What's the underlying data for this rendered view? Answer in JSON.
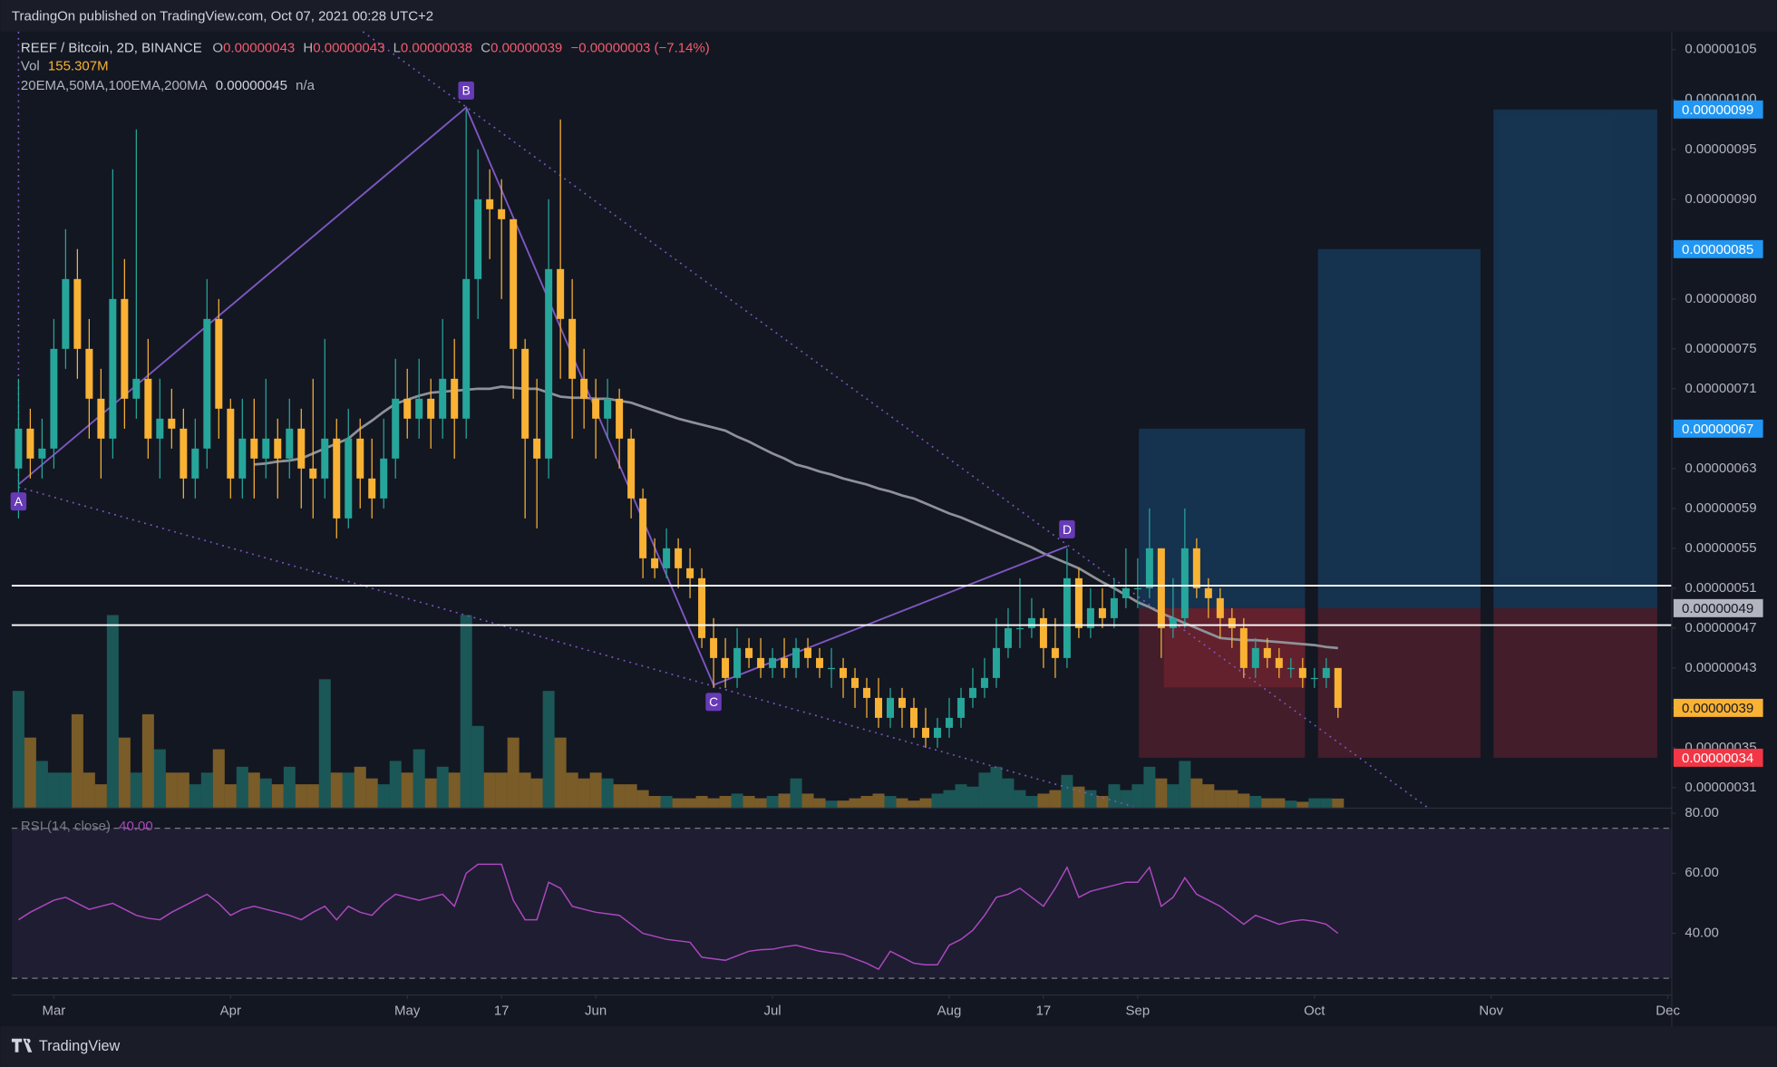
{
  "header": {
    "text": "TradingOn published on TradingView.com, Oct 07, 2021 00:28 UTC+2"
  },
  "footer": {
    "brand": "TradingView"
  },
  "legend": {
    "symbol": "REEF / Bitcoin, 2D, BINANCE",
    "ohlc": [
      {
        "key": "O",
        "value": "0.00000043"
      },
      {
        "key": "H",
        "value": "0.00000043"
      },
      {
        "key": "L",
        "value": "0.00000038"
      },
      {
        "key": "C",
        "value": "0.00000039"
      }
    ],
    "change": "−0.00000003 (−7.14%)",
    "volume_label": "Vol",
    "volume_value": "155.307M",
    "ma_label": "20EMA,50MA,100EMA,200MA",
    "ma_value": "0.00000045",
    "ma_na": "n/a",
    "rsi_label": "RSI (14, close)",
    "rsi_value": "40.00"
  },
  "chart_data": {
    "type": "candlestick",
    "up_color": "#26a69a",
    "down_color": "#f9b234",
    "grid": false,
    "categories": [
      null,
      null,
      null,
      "Mar",
      null,
      null,
      null,
      null,
      null,
      null,
      null,
      null,
      null,
      null,
      null,
      null,
      null,
      null,
      "Apr",
      null,
      null,
      null,
      null,
      null,
      null,
      null,
      null,
      null,
      null,
      null,
      null,
      null,
      null,
      "May",
      null,
      null,
      null,
      null,
      null,
      null,
      null,
      "17",
      null,
      null,
      null,
      null,
      null,
      null,
      null,
      "Jun",
      null,
      null,
      null,
      null,
      null,
      null,
      null,
      null,
      null,
      null,
      null,
      null,
      null,
      null,
      "Jul",
      null,
      null,
      null,
      null,
      null,
      null,
      null,
      null,
      null,
      null,
      null,
      null,
      null,
      null,
      "Aug",
      null,
      null,
      null,
      null,
      null,
      null,
      null,
      "17",
      null,
      null,
      null,
      null,
      null,
      null,
      null,
      "Sep",
      null,
      null,
      null,
      null,
      null,
      null,
      null,
      null,
      null,
      null,
      null,
      null,
      null,
      null,
      "Oct",
      null,
      null,
      null,
      null,
      null,
      null,
      null,
      null,
      null,
      null,
      null,
      null,
      null,
      null,
      "Nov",
      null,
      null,
      null,
      null,
      null,
      null,
      null,
      null,
      null,
      null,
      null,
      null,
      null,
      null,
      "Dec"
    ],
    "open": [
      6.3e-07,
      6.7e-07,
      6.4e-07,
      6.5e-07,
      7.5e-07,
      8.2e-07,
      7.5e-07,
      7e-07,
      6.6e-07,
      8e-07,
      7e-07,
      7.2e-07,
      6.6e-07,
      6.8e-07,
      6.7e-07,
      6.2e-07,
      6.5e-07,
      7.8e-07,
      6.9e-07,
      6.2e-07,
      6.6e-07,
      6.4e-07,
      6.6e-07,
      6.4e-07,
      6.7e-07,
      6.3e-07,
      6.2e-07,
      6.6e-07,
      5.8e-07,
      6.6e-07,
      6.2e-07,
      6e-07,
      6.4e-07,
      7e-07,
      6.8e-07,
      7e-07,
      6.8e-07,
      7.2e-07,
      6.8e-07,
      8.2e-07,
      9e-07,
      8.9e-07,
      8.8e-07,
      7.5e-07,
      6.6e-07,
      6.4e-07,
      8.3e-07,
      7.8e-07,
      7.2e-07,
      7e-07,
      6.8e-07,
      7e-07,
      6.6e-07,
      6e-07,
      5.4e-07,
      5.3e-07,
      5.5e-07,
      5.3e-07,
      5.2e-07,
      4.6e-07,
      4.4e-07,
      4.2e-07,
      4.5e-07,
      4.4e-07,
      4.3e-07,
      4.4e-07,
      4.3e-07,
      4.5e-07,
      4.4e-07,
      4.3e-07,
      4.3e-07,
      4.2e-07,
      4.1e-07,
      4e-07,
      3.8e-07,
      4e-07,
      3.9e-07,
      3.7e-07,
      3.6e-07,
      3.7e-07,
      3.8e-07,
      4e-07,
      4.1e-07,
      4.2e-07,
      4.5e-07,
      4.7e-07,
      4.7e-07,
      4.8e-07,
      4.5e-07,
      4.4e-07,
      5.2e-07,
      4.7e-07,
      4.9e-07,
      4.8e-07,
      5e-07,
      5.1e-07,
      5.1e-07,
      5.5e-07,
      4.7e-07,
      4.8e-07,
      5.5e-07,
      5.1e-07,
      5e-07,
      4.8e-07,
      4.7e-07,
      4.3e-07,
      4.5e-07,
      4.4e-07,
      4.3e-07,
      4.3e-07,
      4.2e-07,
      4.2e-07,
      4.3e-07,
      null,
      null,
      null,
      null,
      null,
      null,
      null,
      null,
      null,
      null,
      null,
      null,
      null,
      null,
      null,
      null,
      null,
      null,
      null,
      null,
      null,
      null,
      null,
      null,
      null,
      null,
      null,
      null
    ],
    "high": [
      7.2e-07,
      6.9e-07,
      6.8e-07,
      7.8e-07,
      8.7e-07,
      8.5e-07,
      7.8e-07,
      7.3e-07,
      9.3e-07,
      8.4e-07,
      9.7e-07,
      7.6e-07,
      7.2e-07,
      7.1e-07,
      6.9e-07,
      6.8e-07,
      8.2e-07,
      8e-07,
      7e-07,
      7e-07,
      7e-07,
      7.2e-07,
      6.8e-07,
      7e-07,
      6.9e-07,
      7.2e-07,
      7.6e-07,
      6.8e-07,
      6.9e-07,
      6.8e-07,
      6.6e-07,
      6.8e-07,
      7.4e-07,
      7.3e-07,
      7.4e-07,
      7.2e-07,
      7.8e-07,
      7.6e-07,
      9.9e-07,
      9.5e-07,
      9.3e-07,
      9.2e-07,
      8.8e-07,
      7.6e-07,
      7.2e-07,
      9e-07,
      9.8e-07,
      8.2e-07,
      7.5e-07,
      7.2e-07,
      7.2e-07,
      7.1e-07,
      6.7e-07,
      6.1e-07,
      5.6e-07,
      5.7e-07,
      5.6e-07,
      5.5e-07,
      5.3e-07,
      4.8e-07,
      4.6e-07,
      4.7e-07,
      4.6e-07,
      4.6e-07,
      4.5e-07,
      4.6e-07,
      4.6e-07,
      4.6e-07,
      4.5e-07,
      4.5e-07,
      4.4e-07,
      4.3e-07,
      4.2e-07,
      4.2e-07,
      4.1e-07,
      4.1e-07,
      4e-07,
      3.9e-07,
      3.8e-07,
      4e-07,
      4.1e-07,
      4.3e-07,
      4.4e-07,
      4.8e-07,
      4.9e-07,
      5.2e-07,
      5e-07,
      4.9e-07,
      4.8e-07,
      5.5e-07,
      5.3e-07,
      5.1e-07,
      5.1e-07,
      5.2e-07,
      5.5e-07,
      5.4e-07,
      5.9e-07,
      5.5e-07,
      5.2e-07,
      5.9e-07,
      5.6e-07,
      5.2e-07,
      5.1e-07,
      4.9e-07,
      4.8e-07,
      4.6e-07,
      4.6e-07,
      4.5e-07,
      4.4e-07,
      4.4e-07,
      4.3e-07,
      4.4e-07,
      4.3e-07,
      null,
      null,
      null,
      null,
      null,
      null,
      null,
      null,
      null,
      null,
      null,
      null,
      null,
      null,
      null,
      null,
      null,
      null,
      null,
      null,
      null,
      null,
      null,
      null,
      null,
      null,
      null,
      null
    ],
    "low": [
      5.8e-07,
      6.2e-07,
      6.2e-07,
      6.3e-07,
      7.3e-07,
      7.2e-07,
      6.6e-07,
      6.2e-07,
      6.4e-07,
      6.7e-07,
      6.8e-07,
      6.4e-07,
      6.2e-07,
      6.5e-07,
      6e-07,
      6e-07,
      6.3e-07,
      6.6e-07,
      6e-07,
      6e-07,
      6e-07,
      6.2e-07,
      6e-07,
      6.2e-07,
      5.9e-07,
      5.8e-07,
      6e-07,
      5.6e-07,
      5.7e-07,
      5.9e-07,
      5.8e-07,
      5.9e-07,
      6.2e-07,
      6.6e-07,
      6.6e-07,
      6.5e-07,
      6.6e-07,
      6.4e-07,
      6.6e-07,
      7.8e-07,
      8.4e-07,
      8e-07,
      7e-07,
      5.8e-07,
      5.7e-07,
      6.2e-07,
      7.2e-07,
      6.6e-07,
      6.7e-07,
      6.4e-07,
      6.6e-07,
      6.3e-07,
      5.8e-07,
      5.2e-07,
      5.2e-07,
      5.2e-07,
      5.1e-07,
      5e-07,
      4.5e-07,
      4.1e-07,
      4.1e-07,
      4.1e-07,
      4.3e-07,
      4.2e-07,
      4.2e-07,
      4.2e-07,
      4.2e-07,
      4.3e-07,
      4.2e-07,
      4.1e-07,
      4e-07,
      3.9e-07,
      3.8e-07,
      3.7e-07,
      3.7e-07,
      3.7e-07,
      3.6e-07,
      3.5e-07,
      3.5e-07,
      3.6e-07,
      3.7e-07,
      3.9e-07,
      4e-07,
      4.1e-07,
      4.4e-07,
      4.5e-07,
      4.6e-07,
      4.3e-07,
      4.2e-07,
      4.3e-07,
      4.6e-07,
      4.6e-07,
      4.7e-07,
      4.7e-07,
      4.9e-07,
      4.9e-07,
      5e-07,
      4.4e-07,
      4.6e-07,
      4.7e-07,
      5e-07,
      4.8e-07,
      4.6e-07,
      4.5e-07,
      4.2e-07,
      4.2e-07,
      4.3e-07,
      4.2e-07,
      4.2e-07,
      4.1e-07,
      4.1e-07,
      4.1e-07,
      3.8e-07,
      null,
      null,
      null,
      null,
      null,
      null,
      null,
      null,
      null,
      null,
      null,
      null,
      null,
      null,
      null,
      null,
      null,
      null,
      null,
      null,
      null,
      null,
      null,
      null,
      null,
      null,
      null,
      null
    ],
    "close": [
      6.7e-07,
      6.4e-07,
      6.5e-07,
      7.5e-07,
      8.2e-07,
      7.5e-07,
      7e-07,
      6.6e-07,
      8e-07,
      7e-07,
      7.2e-07,
      6.6e-07,
      6.8e-07,
      6.7e-07,
      6.2e-07,
      6.5e-07,
      7.8e-07,
      6.9e-07,
      6.2e-07,
      6.6e-07,
      6.4e-07,
      6.6e-07,
      6.4e-07,
      6.7e-07,
      6.3e-07,
      6.2e-07,
      6.6e-07,
      5.8e-07,
      6.6e-07,
      6.2e-07,
      6e-07,
      6.4e-07,
      7e-07,
      6.8e-07,
      7e-07,
      6.8e-07,
      7.2e-07,
      6.8e-07,
      8.2e-07,
      9e-07,
      8.9e-07,
      8.8e-07,
      7.5e-07,
      6.6e-07,
      6.4e-07,
      8.3e-07,
      7.8e-07,
      7.2e-07,
      7e-07,
      6.8e-07,
      7e-07,
      6.6e-07,
      6e-07,
      5.4e-07,
      5.3e-07,
      5.5e-07,
      5.3e-07,
      5.2e-07,
      4.6e-07,
      4.4e-07,
      4.2e-07,
      4.5e-07,
      4.4e-07,
      4.3e-07,
      4.4e-07,
      4.3e-07,
      4.5e-07,
      4.4e-07,
      4.3e-07,
      4.3e-07,
      4.2e-07,
      4.1e-07,
      4e-07,
      3.8e-07,
      4e-07,
      3.9e-07,
      3.7e-07,
      3.6e-07,
      3.7e-07,
      3.8e-07,
      4e-07,
      4.1e-07,
      4.2e-07,
      4.5e-07,
      4.7e-07,
      4.7e-07,
      4.8e-07,
      4.5e-07,
      4.4e-07,
      5.2e-07,
      4.7e-07,
      4.9e-07,
      4.8e-07,
      5e-07,
      5.1e-07,
      5.1e-07,
      5.5e-07,
      4.7e-07,
      4.8e-07,
      5.5e-07,
      5.1e-07,
      5e-07,
      4.8e-07,
      4.7e-07,
      4.3e-07,
      4.5e-07,
      4.4e-07,
      4.3e-07,
      4.3e-07,
      4.2e-07,
      4.2e-07,
      4.3e-07,
      3.9e-07,
      null,
      null,
      null,
      null,
      null,
      null,
      null,
      null,
      null,
      null,
      null,
      null,
      null,
      null,
      null,
      null,
      null,
      null,
      null,
      null,
      null,
      null,
      null,
      null,
      null,
      null,
      null,
      null
    ],
    "volume": [
      2000,
      1200,
      800,
      600,
      600,
      1600,
      600,
      400,
      3300,
      1200,
      600,
      1600,
      1000,
      600,
      600,
      400,
      600,
      1000,
      400,
      700,
      600,
      500,
      400,
      700,
      400,
      400,
      2200,
      600,
      600,
      700,
      500,
      400,
      800,
      600,
      1000,
      500,
      700,
      600,
      3300,
      1400,
      600,
      600,
      1200,
      600,
      500,
      2000,
      1200,
      600,
      500,
      600,
      500,
      400,
      400,
      300,
      200,
      200,
      160,
      160,
      200,
      160,
      200,
      240,
      200,
      160,
      200,
      240,
      500,
      240,
      160,
      120,
      120,
      160,
      200,
      240,
      200,
      160,
      120,
      160,
      240,
      300,
      400,
      360,
      600,
      700,
      500,
      300,
      200,
      240,
      300,
      560,
      360,
      300,
      200,
      400,
      300,
      400,
      700,
      500,
      400,
      800,
      500,
      400,
      300,
      300,
      240,
      200,
      160,
      160,
      120,
      100,
      160,
      160,
      155.307,
      null,
      null,
      null,
      null,
      null,
      null,
      null,
      null,
      null,
      null,
      null,
      null,
      null,
      null,
      null,
      null,
      null,
      null,
      null,
      null,
      null,
      null,
      null,
      null,
      null,
      null,
      null,
      null
    ],
    "ma": {
      "color": "#8f9199",
      "values": [
        null,
        null,
        null,
        null,
        null,
        null,
        null,
        null,
        null,
        null,
        null,
        null,
        null,
        null,
        null,
        null,
        null,
        null,
        null,
        null,
        6.34e-07,
        6.35e-07,
        6.37e-07,
        6.38e-07,
        6.4e-07,
        6.45e-07,
        6.5e-07,
        6.55e-07,
        6.6e-07,
        6.7e-07,
        6.78e-07,
        6.87e-07,
        6.95e-07,
        6.99e-07,
        7.03e-07,
        7.06e-07,
        7.07e-07,
        7.08e-07,
        7.09e-07,
        7.1e-07,
        7.1e-07,
        7.12e-07,
        7.11e-07,
        7.1e-07,
        7.1e-07,
        7.06e-07,
        7.02e-07,
        7.01e-07,
        7.01e-07,
        7e-07,
        7e-07,
        6.98e-07,
        6.96e-07,
        6.92e-07,
        6.88e-07,
        6.84e-07,
        6.8e-07,
        6.77e-07,
        6.74e-07,
        6.71e-07,
        6.68e-07,
        6.62e-07,
        6.57e-07,
        6.51e-07,
        6.45e-07,
        6.4e-07,
        6.34e-07,
        6.31e-07,
        6.27e-07,
        6.24e-07,
        6.2e-07,
        6.17e-07,
        6.14e-07,
        6.1e-07,
        6.07e-07,
        6.03e-07,
        6e-07,
        5.95e-07,
        5.9e-07,
        5.85e-07,
        5.81e-07,
        5.76e-07,
        5.71e-07,
        5.66e-07,
        5.61e-07,
        5.56e-07,
        5.51e-07,
        5.45e-07,
        5.4e-07,
        5.35e-07,
        5.3e-07,
        5.23e-07,
        5.16e-07,
        5.1e-07,
        5.03e-07,
        4.96e-07,
        4.91e-07,
        4.85e-07,
        4.8e-07,
        4.75e-07,
        4.7e-07,
        4.65e-07,
        4.6e-07,
        4.59e-07,
        4.58e-07,
        4.58e-07,
        4.57e-07,
        4.56e-07,
        4.55e-07,
        4.54e-07,
        4.53e-07,
        4.51e-07,
        4.5e-07,
        null,
        null,
        null,
        null,
        null,
        null,
        null,
        null,
        null,
        null,
        null,
        null,
        null,
        null,
        null,
        null,
        null,
        null,
        null,
        null,
        null,
        null,
        null,
        null,
        null,
        null,
        null,
        null
      ]
    },
    "ylim": [
      2.9e-07,
      1.068e-06
    ],
    "yticks": [
      {
        "value": 1.05e-06,
        "label": "0.00000105"
      },
      {
        "value": 1e-06,
        "label": "0.00000100"
      },
      {
        "value": 9.5e-07,
        "label": "0.00000095"
      },
      {
        "value": 9e-07,
        "label": "0.00000090"
      },
      {
        "value": 8.5e-07,
        "label": "0.00000085"
      },
      {
        "value": 8e-07,
        "label": "0.00000080"
      },
      {
        "value": 7.5e-07,
        "label": "0.00000075"
      },
      {
        "value": 7.1e-07,
        "label": "0.00000071"
      },
      {
        "value": 6.7e-07,
        "label": "0.00000067"
      },
      {
        "value": 6.3e-07,
        "label": "0.00000063"
      },
      {
        "value": 5.9e-07,
        "label": "0.00000059"
      },
      {
        "value": 5.5e-07,
        "label": "0.00000055"
      },
      {
        "value": 5.1e-07,
        "label": "0.00000051"
      },
      {
        "value": 4.7e-07,
        "label": "0.00000047"
      },
      {
        "value": 4.3e-07,
        "label": "0.00000043"
      },
      {
        "value": 3.9e-07,
        "label": "0.00000039"
      },
      {
        "value": 3.5e-07,
        "label": "0.00000035"
      },
      {
        "value": 3.1e-07,
        "label": "0.00000031"
      }
    ],
    "price_labels": [
      {
        "value": 9.9e-07,
        "label": "0.00000099",
        "color": "#2196f3",
        "text_color": "#ffffff"
      },
      {
        "value": 8.5e-07,
        "label": "0.00000085",
        "color": "#2196f3",
        "text_color": "#ffffff"
      },
      {
        "value": 6.7e-07,
        "label": "0.00000067",
        "color": "#2196f3",
        "text_color": "#ffffff"
      },
      {
        "value": 4.9e-07,
        "label": "0.00000049",
        "color": "#b2b5be",
        "text_color": "#131722"
      },
      {
        "value": 3.9e-07,
        "label": "0.00000039",
        "color": "#f9b234",
        "text_color": "#131722"
      },
      {
        "value": 3.4e-07,
        "label": "0.00000034",
        "color": "#f23645",
        "text_color": "#ffffff"
      }
    ],
    "zone_lines": [
      5.125e-07,
      4.73e-07
    ],
    "pattern": {
      "color": "#7e57c2",
      "points": [
        {
          "label": "A",
          "x": 0,
          "y": 6.14e-07
        },
        {
          "label": "B",
          "x": 38,
          "y": 9.92e-07
        },
        {
          "label": "C",
          "x": 59,
          "y": 4.13e-07
        },
        {
          "label": "D",
          "x": 89,
          "y": 5.52e-07
        }
      ]
    },
    "rsi": {
      "color": "#ab47bc",
      "ylim": [
        19.6,
        81.5
      ],
      "yticks": [
        {
          "value": 80,
          "label": "80.00"
        },
        {
          "value": 60,
          "label": "60.00"
        },
        {
          "value": 40,
          "label": "40.00"
        }
      ],
      "bands": [
        75,
        25
      ],
      "values": [
        44.5,
        47,
        49,
        51,
        52,
        50,
        48,
        49,
        50,
        48,
        46,
        45,
        44.5,
        47,
        49,
        51,
        53,
        50,
        46,
        48,
        49,
        48,
        47,
        46,
        44.5,
        47,
        49,
        44.5,
        49,
        47,
        46,
        50,
        53,
        52,
        51,
        52,
        53,
        49,
        60,
        63,
        63,
        63,
        51,
        44.5,
        44.5,
        57,
        55,
        49,
        48,
        47,
        46.5,
        46,
        43,
        40,
        39,
        38,
        37.5,
        37,
        32,
        31.5,
        31,
        32.5,
        34,
        34.5,
        34.7,
        35.5,
        36,
        35,
        34,
        33.5,
        33,
        31.5,
        30,
        28,
        34,
        32,
        30,
        29.5,
        29.5,
        36,
        38,
        41,
        46,
        52,
        53,
        55,
        52,
        49,
        55,
        62,
        52,
        54,
        55,
        56,
        57,
        57,
        62,
        49,
        52,
        58.5,
        53,
        51,
        49,
        46,
        43,
        46,
        44.5,
        43,
        44,
        44.5,
        44,
        43,
        40,
        null,
        null,
        null,
        null,
        null,
        null,
        null,
        null,
        null,
        null,
        null,
        null,
        null,
        null,
        null,
        null,
        null,
        null,
        null,
        null,
        null,
        null,
        null,
        null,
        null,
        null,
        null,
        null
      ]
    }
  }
}
